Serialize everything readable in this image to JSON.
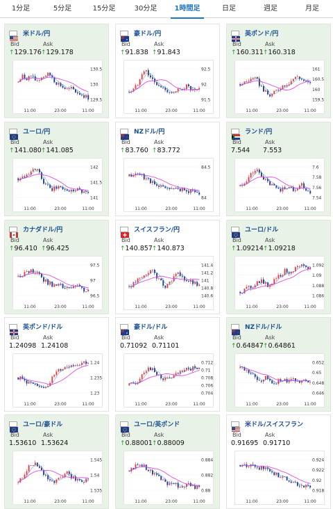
{
  "tabs": [
    "1分足",
    "5分足",
    "15分足",
    "30分足",
    "1時間足",
    "日足",
    "週足",
    "月足"
  ],
  "active_tab": 4,
  "labels": {
    "bid": "Bid",
    "ask": "Ask",
    "up_arrow": "↑"
  },
  "x_ticks": [
    "11:00",
    "23:00",
    "11:00"
  ],
  "colors": {
    "up_candle": "#e83a3a",
    "down_candle": "#1f3a93",
    "ma_line": "#e04ce0",
    "ma_line2": "#2a7ad8",
    "accent": "#1e74c6",
    "card_bg": "#e9f2e6"
  },
  "cards": [
    {
      "pair": "米ドル/円",
      "flag": "us-flag-icon",
      "bid": "129.176",
      "ask": "129.178",
      "bid_up": true,
      "ask_up": true,
      "y_ticks": [
        "130.5",
        "130",
        "129.5"
      ],
      "ylim": [
        129.0,
        130.7
      ],
      "green": true
    },
    {
      "pair": "豪ドル/円",
      "flag": "au-flag-icon",
      "bid": "91.838",
      "ask": "91.843",
      "bid_up": true,
      "ask_up": true,
      "y_ticks": [
        "92.5",
        "92",
        "91.5"
      ],
      "ylim": [
        91.3,
        92.7
      ],
      "green": false
    },
    {
      "pair": "英ポンド/円",
      "flag": "gb-flag-icon",
      "bid": "160.311",
      "ask": "160.318",
      "bid_up": true,
      "ask_up": true,
      "y_ticks": [
        "161",
        "160.5",
        "160",
        "159.5"
      ],
      "ylim": [
        159.3,
        161.2
      ],
      "green": true
    },
    {
      "pair": "ユーロ/円",
      "flag": "eu-flag-icon",
      "bid": "141.080",
      "ask": "141.085",
      "bid_up": true,
      "ask_up": true,
      "y_ticks": [
        "142",
        "141.5",
        "141"
      ],
      "ylim": [
        140.7,
        142.3
      ],
      "green": true
    },
    {
      "pair": "NZドル/円",
      "flag": "nz-flag-icon",
      "bid": "83.760",
      "ask": "83.772",
      "bid_up": true,
      "ask_up": true,
      "y_ticks": [
        "84.5",
        "84"
      ],
      "ylim": [
        83.6,
        85.0
      ],
      "green": false
    },
    {
      "pair": "ランド/円",
      "flag": "za-flag-icon",
      "bid": "7.544",
      "ask": "7.553",
      "bid_up": false,
      "ask_up": false,
      "y_ticks": [
        "7.6",
        "7.58",
        "7.56",
        "7.54"
      ],
      "ylim": [
        7.53,
        7.61
      ],
      "green": true
    },
    {
      "pair": "カナダドル/円",
      "flag": "ca-flag-icon",
      "bid": "96.410",
      "ask": "96.425",
      "bid_up": true,
      "ask_up": true,
      "y_ticks": [
        "97.5",
        "97",
        "96.5"
      ],
      "ylim": [
        96.2,
        97.8
      ],
      "green": true
    },
    {
      "pair": "スイスフラン/円",
      "flag": "ch-flag-icon",
      "bid": "140.857",
      "ask": "140.873",
      "bid_up": true,
      "ask_up": true,
      "y_ticks": [
        "141.4",
        "141.2",
        "141",
        "140.8",
        "140.6"
      ],
      "ylim": [
        140.5,
        141.5
      ],
      "green": false
    },
    {
      "pair": "ユーロ/ドル",
      "flag": "eu-flag-icon",
      "bid": "1.09214",
      "ask": "1.09218",
      "bid_up": true,
      "ask_up": true,
      "y_ticks": [
        "1.092",
        "1.09",
        "1.088",
        "1.086"
      ],
      "ylim": [
        1.085,
        1.093
      ],
      "green": true
    },
    {
      "pair": "英ポンド/ドル",
      "flag": "gb-flag-icon",
      "bid": "1.24098",
      "ask": "1.24108",
      "bid_up": false,
      "ask_up": false,
      "y_ticks": [
        "1.24",
        "1.235",
        "1.23"
      ],
      "ylim": [
        1.227,
        1.242
      ],
      "green": false
    },
    {
      "pair": "豪ドル/ドル",
      "flag": "au-flag-icon",
      "bid": "0.71092",
      "ask": "0.71101",
      "bid_up": false,
      "ask_up": false,
      "y_ticks": [
        "0.712",
        "0.71",
        "0.708",
        "0.706",
        "0.704"
      ],
      "ylim": [
        0.7035,
        0.7125
      ],
      "green": false
    },
    {
      "pair": "NZドル/ドル",
      "flag": "nz-flag-icon",
      "bid": "0.64847",
      "ask": "0.64861",
      "bid_up": true,
      "ask_up": true,
      "y_ticks": [
        "0.652",
        "0.65",
        "0.648",
        "0.646"
      ],
      "ylim": [
        0.645,
        0.653
      ],
      "green": true
    },
    {
      "pair": "ユーロ/豪ドル",
      "flag": "eu-flag-icon",
      "bid": "1.53610",
      "ask": "1.53624",
      "bid_up": false,
      "ask_up": false,
      "y_ticks": [
        "1.545",
        "1.54",
        "1.535"
      ],
      "ylim": [
        1.532,
        1.547
      ],
      "green": true
    },
    {
      "pair": "ユーロ/英ポンド",
      "flag": "eu-flag-icon",
      "bid": "0.88001",
      "ask": "0.88009",
      "bid_up": true,
      "ask_up": true,
      "y_ticks": [
        "0.884",
        "0.882",
        "0.88"
      ],
      "ylim": [
        0.879,
        0.885
      ],
      "green": true
    },
    {
      "pair": "米ドル/スイスフラン",
      "flag": "us-flag-icon",
      "bid": "0.91695",
      "ask": "0.91710",
      "bid_up": false,
      "ask_up": false,
      "y_ticks": [
        "0.924",
        "0.922",
        "0.92",
        "0.918"
      ],
      "ylim": [
        0.917,
        0.925
      ],
      "green": false
    }
  ]
}
